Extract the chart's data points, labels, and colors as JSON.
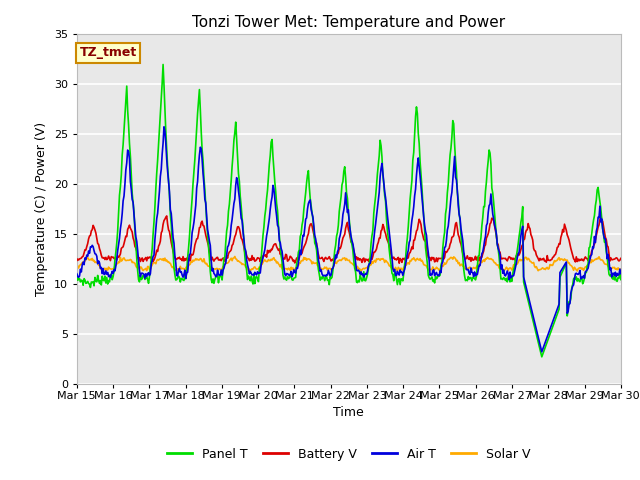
{
  "title": "Tonzi Tower Met: Temperature and Power",
  "xlabel": "Time",
  "ylabel": "Temperature (C) / Power (V)",
  "annotation": "TZ_tmet",
  "ylim": [
    0,
    35
  ],
  "xlim": [
    0,
    15
  ],
  "x_tick_labels": [
    "Mar 15",
    "Mar 16",
    "Mar 17",
    "Mar 18",
    "Mar 19",
    "Mar 20",
    "Mar 21",
    "Mar 22",
    "Mar 23",
    "Mar 24",
    "Mar 25",
    "Mar 26",
    "Mar 27",
    "Mar 28",
    "Mar 29",
    "Mar 30"
  ],
  "yticks": [
    0,
    5,
    10,
    15,
    20,
    25,
    30,
    35
  ],
  "bg_color": "#ffffff",
  "plot_bg_color": "#e8e8e8",
  "grid_color": "#ffffff",
  "colors": {
    "panel": "#00dd00",
    "battery": "#dd0000",
    "air": "#0000dd",
    "solar": "#ffaa00"
  },
  "legend_labels": [
    "Panel T",
    "Battery V",
    "Air T",
    "Solar V"
  ],
  "annot_facecolor": "#ffffcc",
  "annot_edgecolor": "#cc8800",
  "annot_textcolor": "#880000"
}
